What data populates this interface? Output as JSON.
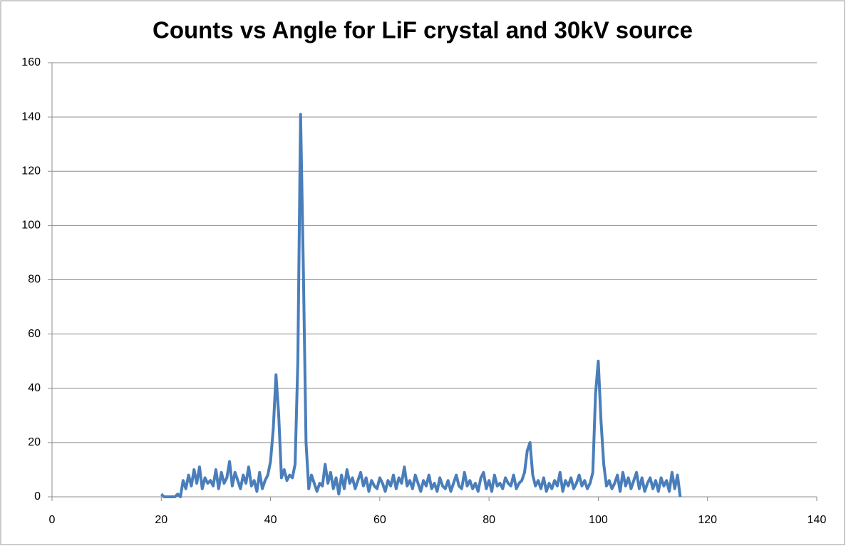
{
  "chart_data": {
    "type": "line",
    "title": "Counts vs Angle for LiF crystal and 30kV source",
    "x": [
      20,
      20.5,
      21,
      21.5,
      22,
      22.5,
      23,
      23.5,
      24,
      24.5,
      25,
      25.5,
      26,
      26.5,
      27,
      27.5,
      28,
      28.5,
      29,
      29.5,
      30,
      30.5,
      31,
      31.5,
      32,
      32.5,
      33,
      33.5,
      34,
      34.5,
      35,
      35.5,
      36,
      36.5,
      37,
      37.5,
      38,
      38.5,
      39,
      39.5,
      40,
      40.5,
      41,
      41.5,
      42,
      42.5,
      43,
      43.5,
      44,
      44.5,
      45,
      45.5,
      46,
      46.5,
      47,
      47.5,
      48,
      48.5,
      49,
      49.5,
      50,
      50.5,
      51,
      51.5,
      52,
      52.5,
      53,
      53.5,
      54,
      54.5,
      55,
      55.5,
      56,
      56.5,
      57,
      57.5,
      58,
      58.5,
      59,
      59.5,
      60,
      60.5,
      61,
      61.5,
      62,
      62.5,
      63,
      63.5,
      64,
      64.5,
      65,
      65.5,
      66,
      66.5,
      67,
      67.5,
      68,
      68.5,
      69,
      69.5,
      70,
      70.5,
      71,
      71.5,
      72,
      72.5,
      73,
      73.5,
      74,
      74.5,
      75,
      75.5,
      76,
      76.5,
      77,
      77.5,
      78,
      78.5,
      79,
      79.5,
      80,
      80.5,
      81,
      81.5,
      82,
      82.5,
      83,
      83.5,
      84,
      84.5,
      85,
      85.5,
      86,
      86.5,
      87,
      87.5,
      88,
      88.5,
      89,
      89.5,
      90,
      90.5,
      91,
      91.5,
      92,
      92.5,
      93,
      93.5,
      94,
      94.5,
      95,
      95.5,
      96,
      96.5,
      97,
      97.5,
      98,
      98.5,
      99,
      99.5,
      100,
      100.5,
      101,
      101.5,
      102,
      102.5,
      103,
      103.5,
      104,
      104.5,
      105,
      105.5,
      106,
      106.5,
      107,
      107.5,
      108,
      108.5,
      109,
      109.5,
      110,
      110.5,
      111,
      111.5,
      112,
      112.5,
      113,
      113.5,
      114,
      114.5,
      115
    ],
    "series": [
      {
        "color": "#4a7ebb",
        "values": [
          1,
          0,
          0,
          0,
          0,
          0,
          1,
          0,
          6,
          3,
          8,
          4,
          10,
          5,
          11,
          3,
          7,
          5,
          6,
          4,
          10,
          3,
          9,
          5,
          7,
          13,
          4,
          9,
          6,
          3,
          8,
          5,
          11,
          4,
          6,
          2,
          9,
          3,
          6,
          8,
          13,
          25,
          45,
          30,
          7,
          10,
          6,
          8,
          7,
          12,
          50,
          141,
          85,
          20,
          3,
          8,
          5,
          2,
          5,
          4,
          12,
          5,
          9,
          3,
          7,
          1,
          8,
          3,
          10,
          5,
          7,
          3,
          6,
          9,
          4,
          7,
          2,
          6,
          4,
          3,
          7,
          5,
          2,
          6,
          4,
          8,
          3,
          7,
          5,
          11,
          4,
          6,
          3,
          8,
          5,
          2,
          6,
          4,
          8,
          3,
          5,
          2,
          7,
          4,
          3,
          6,
          2,
          5,
          8,
          4,
          3,
          9,
          4,
          6,
          3,
          5,
          2,
          7,
          9,
          3,
          6,
          2,
          8,
          4,
          5,
          3,
          7,
          5,
          4,
          8,
          3,
          5,
          6,
          9,
          17,
          20,
          8,
          4,
          6,
          3,
          7,
          2,
          5,
          3,
          6,
          4,
          9,
          2,
          6,
          4,
          7,
          3,
          5,
          8,
          4,
          6,
          3,
          5,
          9,
          38,
          50,
          28,
          12,
          4,
          6,
          3,
          5,
          8,
          2,
          9,
          4,
          7,
          3,
          6,
          9,
          3,
          7,
          2,
          5,
          7,
          3,
          6,
          2,
          7,
          4,
          6,
          2,
          9,
          3,
          8,
          0
        ]
      }
    ],
    "xlim": [
      0,
      140
    ],
    "xticks": [
      0,
      20,
      40,
      60,
      80,
      100,
      120,
      140
    ],
    "ylim": [
      0,
      160
    ],
    "yticks": [
      0,
      20,
      40,
      60,
      80,
      100,
      120,
      140,
      160
    ],
    "grid": true
  }
}
